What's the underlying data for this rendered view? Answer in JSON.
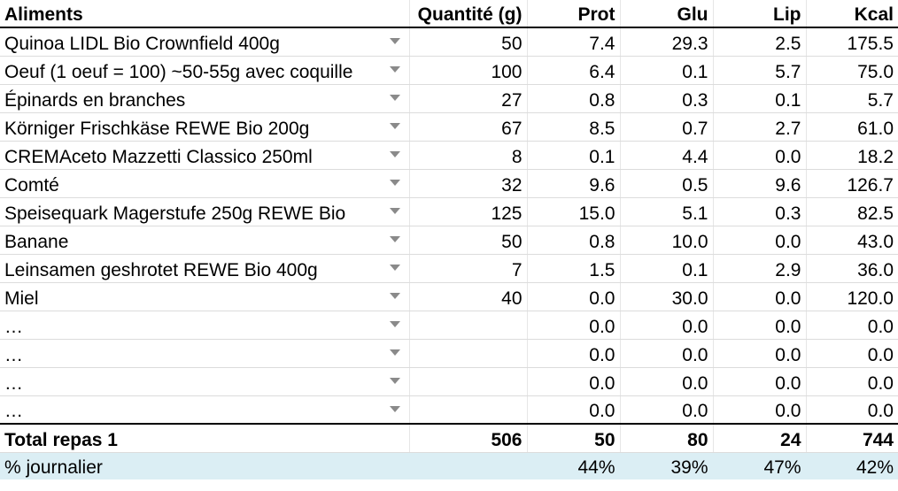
{
  "headers": {
    "food": "Aliments",
    "qty": "Quantité (g)",
    "prot": "Prot",
    "glu": "Glu",
    "lip": "Lip",
    "kcal": "Kcal"
  },
  "rows": [
    {
      "food": "Quinoa LIDL Bio Crownfield 400g",
      "qty": "50",
      "prot": "7.4",
      "glu": "29.3",
      "lip": "2.5",
      "kcal": "175.5"
    },
    {
      "food": "Oeuf (1 oeuf = 100) ~50-55g avec coquille",
      "qty": "100",
      "prot": "6.4",
      "glu": "0.1",
      "lip": "5.7",
      "kcal": "75.0"
    },
    {
      "food": "Épinards en branches",
      "qty": "27",
      "prot": "0.8",
      "glu": "0.3",
      "lip": "0.1",
      "kcal": "5.7"
    },
    {
      "food": "Körniger Frischkäse REWE Bio 200g",
      "qty": "67",
      "prot": "8.5",
      "glu": "0.7",
      "lip": "2.7",
      "kcal": "61.0"
    },
    {
      "food": "CREMAceto Mazzetti Classico 250ml",
      "qty": "8",
      "prot": "0.1",
      "glu": "4.4",
      "lip": "0.0",
      "kcal": "18.2"
    },
    {
      "food": "Comté",
      "qty": "32",
      "prot": "9.6",
      "glu": "0.5",
      "lip": "9.6",
      "kcal": "126.7"
    },
    {
      "food": "Speisequark Magerstufe 250g REWE Bio",
      "qty": "125",
      "prot": "15.0",
      "glu": "5.1",
      "lip": "0.3",
      "kcal": "82.5"
    },
    {
      "food": "Banane",
      "qty": "50",
      "prot": "0.8",
      "glu": "10.0",
      "lip": "0.0",
      "kcal": "43.0"
    },
    {
      "food": "Leinsamen geshrotet REWE Bio 400g",
      "qty": "7",
      "prot": "1.5",
      "glu": "0.1",
      "lip": "2.9",
      "kcal": "36.0"
    },
    {
      "food": "Miel",
      "qty": "40",
      "prot": "0.0",
      "glu": "30.0",
      "lip": "0.0",
      "kcal": "120.0"
    },
    {
      "food": "…",
      "qty": "",
      "prot": "0.0",
      "glu": "0.0",
      "lip": "0.0",
      "kcal": "0.0"
    },
    {
      "food": "…",
      "qty": "",
      "prot": "0.0",
      "glu": "0.0",
      "lip": "0.0",
      "kcal": "0.0"
    },
    {
      "food": "…",
      "qty": "",
      "prot": "0.0",
      "glu": "0.0",
      "lip": "0.0",
      "kcal": "0.0"
    },
    {
      "food": "…",
      "qty": "",
      "prot": "0.0",
      "glu": "0.0",
      "lip": "0.0",
      "kcal": "0.0"
    }
  ],
  "total": {
    "label": "Total repas 1",
    "qty": "506",
    "prot": "50",
    "glu": "80",
    "lip": "24",
    "kcal": "744"
  },
  "percent": {
    "label": "% journalier",
    "qty": "",
    "prot": "44%",
    "glu": "39%",
    "lip": "47%",
    "kcal": "42%"
  },
  "icons": {
    "dropdown": "chevron-down-icon"
  },
  "colors": {
    "percent_row_bg": "#dbeef4",
    "dropdown_arrow": "#8a8a8a"
  }
}
